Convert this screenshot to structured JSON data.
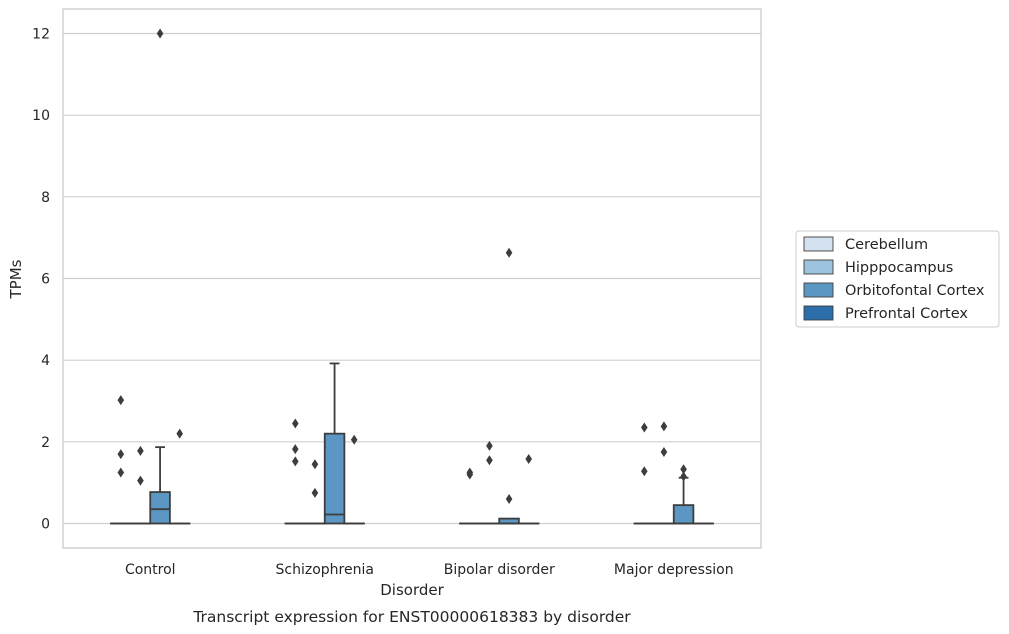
{
  "chart_data": {
    "type": "box",
    "title": "",
    "caption": "Transcript expression for ENST00000618383 by disorder",
    "xlabel": "Disorder",
    "ylabel": "TPMs",
    "ylim": [
      -0.6,
      12.6
    ],
    "yticks": [
      0,
      2,
      4,
      6,
      8,
      10,
      12
    ],
    "ytick_labels": [
      "0",
      "2",
      "4",
      "6",
      "8",
      "10",
      "12"
    ],
    "grid": "horizontal",
    "legend_position": "right",
    "categories": [
      "Control",
      "Schizophrenia",
      "Bipolar disorder",
      "Major depression"
    ],
    "series": [
      {
        "name": "Cerebellum",
        "color": "#d4e2ef",
        "boxes": [
          {
            "q1": 0,
            "median": 0,
            "q3": 0,
            "whisker_low": 0,
            "whisker_high": 0,
            "outliers": [
              1.25,
              1.7,
              3.02
            ]
          },
          {
            "q1": 0,
            "median": 0,
            "q3": 0,
            "whisker_low": 0,
            "whisker_high": 0,
            "outliers": [
              1.52,
              1.82,
              2.45
            ]
          },
          {
            "q1": 0,
            "median": 0,
            "q3": 0,
            "whisker_low": 0,
            "whisker_high": 0,
            "outliers": [
              1.2,
              1.25
            ]
          },
          {
            "q1": 0,
            "median": 0,
            "q3": 0,
            "whisker_low": 0,
            "whisker_high": 0,
            "outliers": [
              1.28,
              2.35
            ]
          }
        ]
      },
      {
        "name": "Hipppocampus",
        "color": "#9cc4de",
        "boxes": [
          {
            "q1": 0,
            "median": 0,
            "q3": 0,
            "whisker_low": 0,
            "whisker_high": 0,
            "outliers": [
              1.05,
              1.78
            ]
          },
          {
            "q1": 0,
            "median": 0,
            "q3": 0,
            "whisker_low": 0,
            "whisker_high": 0,
            "outliers": [
              0.75,
              1.45
            ]
          },
          {
            "q1": 0,
            "median": 0,
            "q3": 0,
            "whisker_low": 0,
            "whisker_high": 0,
            "outliers": [
              1.55,
              1.9
            ]
          },
          {
            "q1": 0,
            "median": 0,
            "q3": 0,
            "whisker_low": 0,
            "whisker_high": 0,
            "outliers": [
              1.75,
              2.38
            ]
          }
        ]
      },
      {
        "name": "Orbitofontal Cortex",
        "color": "#5b97c2",
        "boxes": [
          {
            "q1": 0,
            "median": 0.35,
            "q3": 0.77,
            "whisker_low": 0,
            "whisker_high": 1.87,
            "outliers": [
              12.0
            ]
          },
          {
            "q1": 0,
            "median": 0.22,
            "q3": 2.2,
            "whisker_low": 0,
            "whisker_high": 3.92,
            "outliers": []
          },
          {
            "q1": 0,
            "median": 0,
            "q3": 0.12,
            "whisker_low": 0,
            "whisker_high": 0.12,
            "outliers": [
              0.6,
              6.63
            ]
          },
          {
            "q1": 0,
            "median": 0,
            "q3": 0.45,
            "whisker_low": 0,
            "whisker_high": 1.12,
            "outliers": [
              1.15,
              1.33
            ]
          }
        ]
      },
      {
        "name": "Prefrontal Cortex",
        "color": "#2c6eaa",
        "boxes": [
          {
            "q1": 0,
            "median": 0,
            "q3": 0,
            "whisker_low": 0,
            "whisker_high": 0,
            "outliers": [
              2.2
            ]
          },
          {
            "q1": 0,
            "median": 0,
            "q3": 0,
            "whisker_low": 0,
            "whisker_high": 0,
            "outliers": [
              2.05
            ]
          },
          {
            "q1": 0,
            "median": 0,
            "q3": 0,
            "whisker_low": 0,
            "whisker_high": 0,
            "outliers": [
              1.58
            ]
          },
          {
            "q1": 0,
            "median": 0,
            "q3": 0,
            "whisker_low": 0,
            "whisker_high": 0,
            "outliers": []
          }
        ]
      }
    ]
  }
}
